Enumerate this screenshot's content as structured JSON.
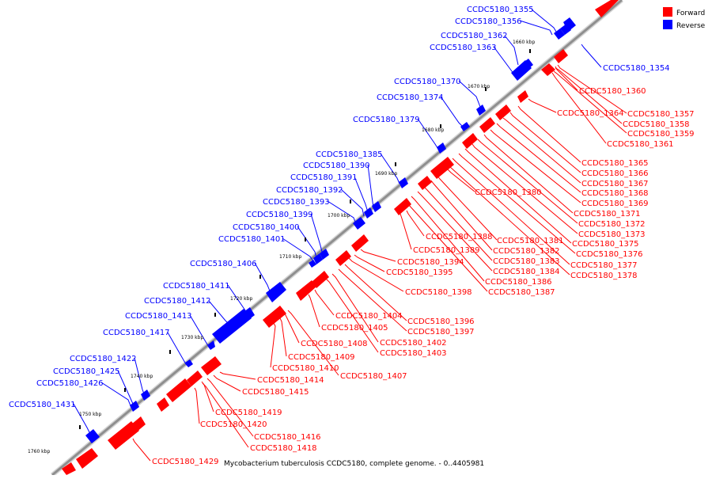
{
  "caption": "Mycobacterium tuberculosis CCDC5180, complete genome. - 0..4405981",
  "legend": [
    {
      "label": "Forward",
      "color": "#ff0000"
    },
    {
      "label": "Reverse",
      "color": "#0000ff"
    }
  ],
  "colors": {
    "forward": "#ff0000",
    "reverse": "#0000ff",
    "backbone": "#8f8f8f",
    "backbone_light": "#d4d4d4"
  },
  "ticks": [
    {
      "label": "1660 kbp"
    },
    {
      "label": "1670 kbp"
    },
    {
      "label": "1680 kbp"
    },
    {
      "label": "1690 kbp"
    },
    {
      "label": "1700 kbp"
    },
    {
      "label": "1710 kbp"
    },
    {
      "label": "1720 kbp"
    },
    {
      "label": "1730 kbp"
    },
    {
      "label": "1740 kbp"
    },
    {
      "label": "1750 kbp"
    },
    {
      "label": "1760 kbp"
    }
  ],
  "reverse_genes": [
    {
      "label": "CCDC5180_1355"
    },
    {
      "label": "CCDC5180_1356"
    },
    {
      "label": "CCDC5180_1362"
    },
    {
      "label": "CCDC5180_1363"
    },
    {
      "label": "CCDC5180_1370"
    },
    {
      "label": "CCDC5180_1374"
    },
    {
      "label": "CCDC5180_1379"
    },
    {
      "label": "CCDC5180_1385"
    },
    {
      "label": "CCDC5180_1390"
    },
    {
      "label": "CCDC5180_1391"
    },
    {
      "label": "CCDC5180_1392"
    },
    {
      "label": "CCDC5180_1393"
    },
    {
      "label": "CCDC5180_1399"
    },
    {
      "label": "CCDC5180_1400"
    },
    {
      "label": "CCDC5180_1401"
    },
    {
      "label": "CCDC5180_1406"
    },
    {
      "label": "CCDC5180_1411"
    },
    {
      "label": "CCDC5180_1412"
    },
    {
      "label": "CCDC5180_1413"
    },
    {
      "label": "CCDC5180_1417"
    },
    {
      "label": "CCDC5180_1422"
    },
    {
      "label": "CCDC5180_1425"
    },
    {
      "label": "CCDC5180_1426"
    },
    {
      "label": "CCDC5180_1431"
    },
    {
      "label": "CCDC5180_1354"
    }
  ],
  "forward_genes": [
    {
      "label": "CCDC5180_1360"
    },
    {
      "label": "CCDC5180_1364"
    },
    {
      "label": "CCDC5180_1357"
    },
    {
      "label": "CCDC5180_1358"
    },
    {
      "label": "CCDC5180_1359"
    },
    {
      "label": "CCDC5180_1361"
    },
    {
      "label": "CCDC5180_1365"
    },
    {
      "label": "CCDC5180_1366"
    },
    {
      "label": "CCDC5180_1367"
    },
    {
      "label": "CCDC5180_1368"
    },
    {
      "label": "CCDC5180_1369"
    },
    {
      "label": "CCDC5180_1380"
    },
    {
      "label": "CCDC5180_1371"
    },
    {
      "label": "CCDC5180_1372"
    },
    {
      "label": "CCDC5180_1373"
    },
    {
      "label": "CCDC5180_1375"
    },
    {
      "label": "CCDC5180_1376"
    },
    {
      "label": "CCDC5180_1377"
    },
    {
      "label": "CCDC5180_1378"
    },
    {
      "label": "CCDC5180_1388"
    },
    {
      "label": "CCDC5180_1381"
    },
    {
      "label": "CCDC5180_1389"
    },
    {
      "label": "CCDC5180_1382"
    },
    {
      "label": "CCDC5180_1383"
    },
    {
      "label": "CCDC5180_1394"
    },
    {
      "label": "CCDC5180_1384"
    },
    {
      "label": "CCDC5180_1395"
    },
    {
      "label": "CCDC5180_1386"
    },
    {
      "label": "CCDC5180_1387"
    },
    {
      "label": "CCDC5180_1398"
    },
    {
      "label": "CCDC5180_1404"
    },
    {
      "label": "CCDC5180_1396"
    },
    {
      "label": "CCDC5180_1405"
    },
    {
      "label": "CCDC5180_1397"
    },
    {
      "label": "CCDC5180_1402"
    },
    {
      "label": "CCDC5180_1408"
    },
    {
      "label": "CCDC5180_1403"
    },
    {
      "label": "CCDC5180_1409"
    },
    {
      "label": "CCDC5180_1410"
    },
    {
      "label": "CCDC5180_1407"
    },
    {
      "label": "CCDC5180_1414"
    },
    {
      "label": "CCDC5180_1415"
    },
    {
      "label": "CCDC5180_1419"
    },
    {
      "label": "CCDC5180_1420"
    },
    {
      "label": "CCDC5180_1416"
    },
    {
      "label": "CCDC5180_1418"
    },
    {
      "label": "CCDC5180_1429"
    }
  ]
}
